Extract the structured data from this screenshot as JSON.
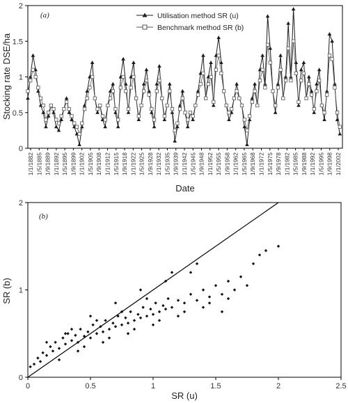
{
  "chart_data": [
    {
      "type": "line",
      "panel_label": "(a)",
      "title": "",
      "xlabel": "Date",
      "ylabel": "Stocking rate DSE/ha",
      "ylim": [
        0,
        2
      ],
      "y_ticks": [
        "0",
        "0.5",
        "1",
        "1.5",
        "2"
      ],
      "x_range": [
        "1/1/1882",
        "1/1/2004"
      ],
      "x_tick_labels": [
        "1/1/1882",
        "1/5/1885",
        "1/9/1889",
        "1/1/1892",
        "1/5/1895",
        "1/9/1899",
        "1/1/1902",
        "1/5/1905",
        "1/9/1908",
        "1/1/1912",
        "1/5/1915",
        "1/9/1918",
        "1/1/1922",
        "1/5/1925",
        "1/9/1928",
        "1/1/1932",
        "1/5/1935",
        "1/9/1939",
        "1/1/1942",
        "1/5/1945",
        "1/9/1948",
        "1/1/1952",
        "1/5/1955",
        "1/9/1958",
        "1/1/1962",
        "1/5/1965",
        "1/9/1968",
        "1/1/1972",
        "1/5/1975",
        "1/9/1978",
        "1/1/1982",
        "1/5/1985",
        "1/9/1988",
        "1/1/1992",
        "1/5/1995",
        "1/9/1998",
        "1/1/2002"
      ],
      "legend_position": "top-right",
      "series": [
        {
          "name": "Utilisation method SR (u)",
          "marker": "filled-triangle",
          "color": "#1a1a1a",
          "x": [
            1882,
            1883,
            1884,
            1885,
            1886,
            1887,
            1888,
            1889,
            1890,
            1891,
            1892,
            1893,
            1894,
            1895,
            1896,
            1897,
            1898,
            1899,
            1900,
            1901,
            1902,
            1903,
            1904,
            1905,
            1906,
            1907,
            1908,
            1909,
            1910,
            1911,
            1912,
            1913,
            1914,
            1915,
            1916,
            1917,
            1918,
            1919,
            1920,
            1921,
            1922,
            1923,
            1924,
            1925,
            1926,
            1927,
            1928,
            1929,
            1930,
            1931,
            1932,
            1933,
            1934,
            1935,
            1936,
            1937,
            1938,
            1939,
            1940,
            1941,
            1942,
            1943,
            1944,
            1945,
            1946,
            1947,
            1948,
            1949,
            1950,
            1951,
            1952,
            1953,
            1954,
            1955,
            1956,
            1957,
            1958,
            1959,
            1960,
            1961,
            1962,
            1963,
            1964,
            1965,
            1966,
            1967,
            1968,
            1969,
            1970,
            1971,
            1972,
            1973,
            1974,
            1975,
            1976,
            1977,
            1978,
            1979,
            1980,
            1981,
            1982,
            1983,
            1984,
            1985,
            1986,
            1987,
            1988,
            1989,
            1990,
            1991,
            1992,
            1993,
            1994,
            1995,
            1996,
            1997,
            1998,
            1999,
            2000,
            2001,
            2002,
            2003
          ],
          "values": [
            0.7,
            1.0,
            1.3,
            1.1,
            0.8,
            0.6,
            0.5,
            0.3,
            0.45,
            0.6,
            0.5,
            0.3,
            0.25,
            0.4,
            0.55,
            0.7,
            0.5,
            0.4,
            0.3,
            0.2,
            0.05,
            0.3,
            0.6,
            0.8,
            1.0,
            1.2,
            0.7,
            0.5,
            0.6,
            0.4,
            0.3,
            0.6,
            0.8,
            0.9,
            0.5,
            0.3,
            1.0,
            1.25,
            0.9,
            0.5,
            1.0,
            1.2,
            0.7,
            0.4,
            0.6,
            0.9,
            1.1,
            0.8,
            0.5,
            0.3,
            0.9,
            1.15,
            0.7,
            0.4,
            0.6,
            0.9,
            0.5,
            0.1,
            0.3,
            0.6,
            0.8,
            0.5,
            0.3,
            0.5,
            0.4,
            0.6,
            0.8,
            1.05,
            1.3,
            0.7,
            1.0,
            1.2,
            0.6,
            1.3,
            1.55,
            1.2,
            0.8,
            0.6,
            0.4,
            0.5,
            0.7,
            0.9,
            0.7,
            0.6,
            0.3,
            0.05,
            0.4,
            0.7,
            0.9,
            0.6,
            1.1,
            1.3,
            0.9,
            1.85,
            1.4,
            0.8,
            0.5,
            0.9,
            1.3,
            0.7,
            1.0,
            1.75,
            1.0,
            1.95,
            1.2,
            0.6,
            1.1,
            1.2,
            0.7,
            1.0,
            0.8,
            0.5,
            0.9,
            1.1,
            0.6,
            0.4,
            0.8,
            1.6,
            1.5,
            0.9,
            0.4,
            0.2
          ]
        },
        {
          "name": "Benchmark method SR (b)",
          "marker": "open-square",
          "color": "#555555",
          "x": [
            1882,
            1883,
            1884,
            1885,
            1886,
            1887,
            1888,
            1889,
            1890,
            1891,
            1892,
            1893,
            1894,
            1895,
            1896,
            1897,
            1898,
            1899,
            1900,
            1901,
            1902,
            1903,
            1904,
            1905,
            1906,
            1907,
            1908,
            1909,
            1910,
            1911,
            1912,
            1913,
            1914,
            1915,
            1916,
            1917,
            1918,
            1919,
            1920,
            1921,
            1922,
            1923,
            1924,
            1925,
            1926,
            1927,
            1928,
            1929,
            1930,
            1931,
            1932,
            1933,
            1934,
            1935,
            1936,
            1937,
            1938,
            1939,
            1940,
            1941,
            1942,
            1943,
            1944,
            1945,
            1946,
            1947,
            1948,
            1949,
            1950,
            1951,
            1952,
            1953,
            1954,
            1955,
            1956,
            1957,
            1958,
            1959,
            1960,
            1961,
            1962,
            1963,
            1964,
            1965,
            1966,
            1967,
            1968,
            1969,
            1970,
            1971,
            1972,
            1973,
            1974,
            1975,
            1976,
            1977,
            1978,
            1979,
            1980,
            1981,
            1982,
            1983,
            1984,
            1985,
            1986,
            1987,
            1988,
            1989,
            1990,
            1991,
            1992,
            1993,
            1994,
            1995,
            1996,
            1997,
            1998,
            1999,
            2000,
            2001,
            2002,
            2003
          ],
          "values": [
            0.8,
            0.95,
            1.1,
            1.0,
            0.85,
            0.7,
            0.6,
            0.4,
            0.5,
            0.6,
            0.55,
            0.4,
            0.35,
            0.45,
            0.55,
            0.65,
            0.55,
            0.45,
            0.35,
            0.3,
            0.2,
            0.35,
            0.55,
            0.7,
            0.85,
            1.0,
            0.7,
            0.55,
            0.6,
            0.45,
            0.4,
            0.6,
            0.7,
            0.8,
            0.55,
            0.4,
            0.85,
            1.0,
            0.8,
            0.55,
            0.85,
            1.0,
            0.7,
            0.45,
            0.6,
            0.8,
            0.95,
            0.75,
            0.55,
            0.4,
            0.8,
            0.95,
            0.7,
            0.45,
            0.6,
            0.8,
            0.55,
            0.25,
            0.35,
            0.55,
            0.7,
            0.5,
            0.4,
            0.5,
            0.45,
            0.6,
            0.75,
            0.9,
            1.05,
            0.7,
            0.9,
            1.0,
            0.65,
            1.1,
            1.3,
            1.05,
            0.8,
            0.6,
            0.5,
            0.55,
            0.7,
            0.8,
            0.7,
            0.6,
            0.4,
            0.25,
            0.45,
            0.65,
            0.8,
            0.6,
            0.95,
            1.1,
            0.85,
            1.45,
            1.2,
            0.8,
            0.6,
            0.85,
            1.1,
            0.7,
            0.95,
            1.4,
            0.95,
            1.5,
            1.05,
            0.65,
            0.95,
            1.05,
            0.7,
            0.9,
            0.75,
            0.55,
            0.8,
            0.95,
            0.6,
            0.5,
            0.75,
            1.3,
            1.25,
            0.85,
            0.5,
            0.3
          ]
        }
      ]
    },
    {
      "type": "scatter",
      "panel_label": "(b)",
      "title": "",
      "xlabel": "SR (u)",
      "ylabel": "SR (b)",
      "xlim": [
        0,
        2.5
      ],
      "ylim": [
        0,
        2
      ],
      "x_ticks": [
        "0",
        "0.5",
        "1",
        "1.5",
        "2",
        "2.5"
      ],
      "y_ticks": [
        "0",
        "1",
        "2"
      ],
      "reference_line": {
        "from": [
          0,
          0
        ],
        "to": [
          2,
          2
        ]
      },
      "points": [
        [
          0.02,
          0.12
        ],
        [
          0.05,
          0.15
        ],
        [
          0.08,
          0.22
        ],
        [
          0.1,
          0.18
        ],
        [
          0.12,
          0.28
        ],
        [
          0.15,
          0.25
        ],
        [
          0.18,
          0.35
        ],
        [
          0.2,
          0.3
        ],
        [
          0.22,
          0.4
        ],
        [
          0.25,
          0.33
        ],
        [
          0.28,
          0.45
        ],
        [
          0.3,
          0.38
        ],
        [
          0.32,
          0.5
        ],
        [
          0.35,
          0.42
        ],
        [
          0.38,
          0.48
        ],
        [
          0.4,
          0.4
        ],
        [
          0.42,
          0.55
        ],
        [
          0.45,
          0.47
        ],
        [
          0.48,
          0.52
        ],
        [
          0.5,
          0.45
        ],
        [
          0.52,
          0.6
        ],
        [
          0.55,
          0.5
        ],
        [
          0.58,
          0.58
        ],
        [
          0.6,
          0.52
        ],
        [
          0.62,
          0.65
        ],
        [
          0.65,
          0.55
        ],
        [
          0.68,
          0.62
        ],
        [
          0.7,
          0.58
        ],
        [
          0.72,
          0.7
        ],
        [
          0.75,
          0.6
        ],
        [
          0.78,
          0.68
        ],
        [
          0.8,
          0.62
        ],
        [
          0.82,
          0.75
        ],
        [
          0.85,
          0.65
        ],
        [
          0.88,
          0.72
        ],
        [
          0.9,
          0.68
        ],
        [
          0.92,
          0.8
        ],
        [
          0.95,
          0.7
        ],
        [
          0.98,
          0.78
        ],
        [
          1.0,
          0.72
        ],
        [
          1.02,
          0.85
        ],
        [
          1.05,
          0.75
        ],
        [
          1.08,
          0.82
        ],
        [
          1.1,
          0.78
        ],
        [
          1.12,
          0.9
        ],
        [
          1.15,
          0.8
        ],
        [
          1.2,
          0.88
        ],
        [
          1.25,
          0.85
        ],
        [
          1.3,
          0.95
        ],
        [
          1.35,
          0.88
        ],
        [
          1.4,
          1.0
        ],
        [
          1.45,
          0.92
        ],
        [
          1.5,
          1.05
        ],
        [
          1.55,
          0.95
        ],
        [
          1.6,
          1.1
        ],
        [
          1.65,
          1.0
        ],
        [
          1.7,
          1.15
        ],
        [
          1.8,
          1.3
        ],
        [
          1.85,
          1.4
        ],
        [
          2.0,
          1.5
        ],
        [
          0.3,
          0.5
        ],
        [
          0.5,
          0.7
        ],
        [
          0.7,
          0.85
        ],
        [
          0.9,
          1.0
        ],
        [
          1.1,
          1.1
        ],
        [
          1.3,
          1.2
        ],
        [
          0.4,
          0.3
        ],
        [
          0.6,
          0.4
        ],
        [
          0.8,
          0.5
        ],
        [
          1.0,
          0.6
        ],
        [
          1.2,
          0.7
        ],
        [
          1.4,
          0.8
        ],
        [
          1.6,
          0.9
        ],
        [
          0.15,
          0.4
        ],
        [
          0.25,
          0.2
        ],
        [
          0.35,
          0.55
        ],
        [
          0.45,
          0.35
        ],
        [
          0.55,
          0.65
        ],
        [
          0.65,
          0.45
        ],
        [
          0.75,
          0.75
        ],
        [
          0.85,
          0.55
        ],
        [
          0.95,
          0.9
        ],
        [
          1.05,
          0.65
        ],
        [
          1.15,
          1.2
        ],
        [
          1.25,
          0.75
        ],
        [
          1.35,
          1.3
        ],
        [
          1.45,
          0.85
        ],
        [
          1.55,
          0.75
        ],
        [
          1.75,
          1.05
        ],
        [
          1.9,
          1.45
        ]
      ]
    }
  ]
}
